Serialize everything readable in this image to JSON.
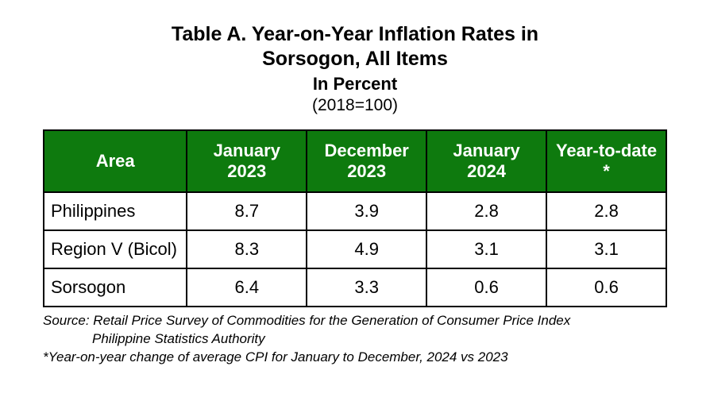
{
  "title": {
    "line1": "Table A. Year-on-Year Inflation Rates in",
    "line2": "Sorsogon, All Items",
    "sub1": "In Percent",
    "sub2": "(2018=100)"
  },
  "table": {
    "header_bg": "#0e7a0e",
    "header_fg": "#ffffff",
    "border_color": "#000000",
    "cell_bg": "#ffffff",
    "font_family": "Arial",
    "header_fontsize_pt": 16,
    "cell_fontsize_pt": 16,
    "columns": [
      {
        "label": "Area",
        "align": "left",
        "key": "area"
      },
      {
        "label": "January 2023",
        "align": "center",
        "key": "jan2023"
      },
      {
        "label": "December 2023",
        "align": "center",
        "key": "dec2023"
      },
      {
        "label": "January 2024",
        "align": "center",
        "key": "jan2024"
      },
      {
        "label": "Year-to-date *",
        "align": "center",
        "key": "ytd"
      }
    ],
    "rows": [
      {
        "area": "Philippines",
        "jan2023": "8.7",
        "dec2023": "3.9",
        "jan2024": "2.8",
        "ytd": "2.8"
      },
      {
        "area": "Region V (Bicol)",
        "jan2023": "8.3",
        "dec2023": "4.9",
        "jan2024": "3.1",
        "ytd": "3.1"
      },
      {
        "area": "Sorsogon",
        "jan2023": "6.4",
        "dec2023": "3.3",
        "jan2024": "0.6",
        "ytd": "0.6"
      }
    ]
  },
  "footnotes": {
    "source_line1": "Source: Retail Price Survey of Commodities for the Generation of Consumer Price Index",
    "source_line2": "Philippine Statistics Authority",
    "note": "*Year-on-year change of average CPI for January to December, 2024 vs 2023"
  }
}
